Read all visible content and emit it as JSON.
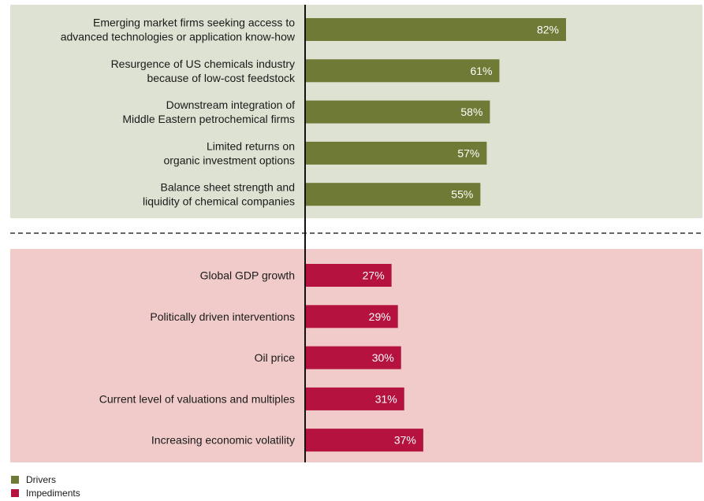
{
  "chart_data": {
    "type": "bar",
    "orientation": "horizontal",
    "unit": "%",
    "xlim": [
      0,
      100
    ],
    "groups": [
      {
        "name": "Drivers",
        "bar_color": "#6e7a35",
        "panel_color": "#dde2d3",
        "categories": [
          [
            "Emerging market firms seeking access to",
            "advanced technologies or application know-how"
          ],
          [
            "Resurgence of US chemicals industry",
            "because of low-cost feedstock"
          ],
          [
            "Downstream integration of",
            "Middle Eastern petrochemical firms"
          ],
          [
            "Limited returns on",
            "organic investment options"
          ],
          [
            "Balance sheet strength and",
            "liquidity of chemical companies"
          ]
        ],
        "values": [
          82,
          61,
          58,
          57,
          55
        ],
        "value_labels": [
          "82%",
          "61%",
          "58%",
          "57%",
          "55%"
        ]
      },
      {
        "name": "Impediments",
        "bar_color": "#b5123f",
        "panel_color": "#f0cbc9",
        "categories": [
          [
            "Global GDP growth"
          ],
          [
            "Politically driven interventions"
          ],
          [
            "Oil price"
          ],
          [
            "Current level of valuations and multiples"
          ],
          [
            "Increasing economic volatility"
          ]
        ],
        "values": [
          27,
          29,
          30,
          31,
          37
        ],
        "value_labels": [
          "27%",
          "29%",
          "30%",
          "31%",
          "37%"
        ]
      }
    ],
    "legend": {
      "position": "bottom-left",
      "items": [
        {
          "label": "Drivers",
          "color": "#6e7a35"
        },
        {
          "label": "Impediments",
          "color": "#b5123f"
        }
      ]
    }
  }
}
